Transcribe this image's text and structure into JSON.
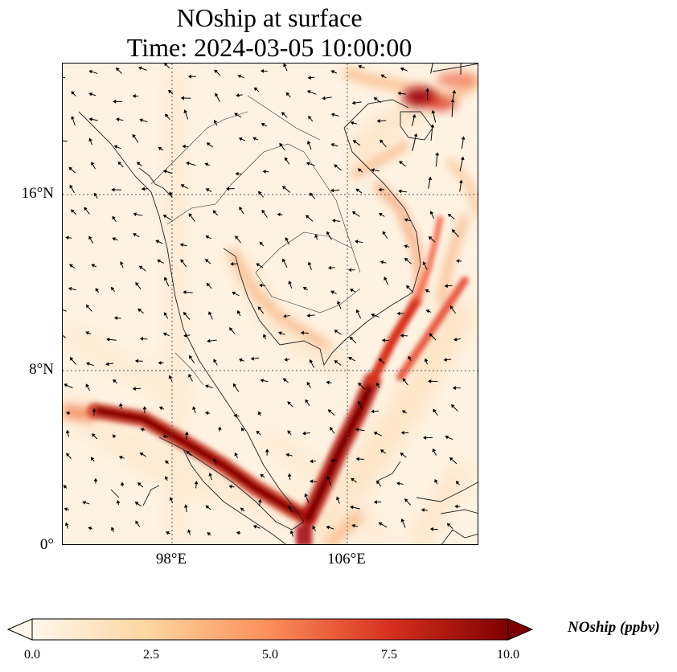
{
  "title": {
    "line1": "NOship at surface",
    "line2": "Time: 2024-03-05 10:00:00"
  },
  "map": {
    "variable": "NOship",
    "colormap": "OrRd",
    "extent": {
      "lon_min": 93,
      "lon_max": 112,
      "lat_min": 0,
      "lat_max": 22
    },
    "gridlines": {
      "style": "dotted",
      "lons": [
        98,
        106
      ],
      "lats": [
        0,
        8,
        16
      ]
    },
    "lat_labels": [
      "16°N",
      "8°N",
      "0°"
    ],
    "lon_labels": [
      "98°E",
      "106°E"
    ],
    "vector_field": "wind",
    "high_concentration_features": [
      "Strait of Malacca shipping lane",
      "Singapore Strait",
      "South China Sea lane to the northeast",
      "Vietnam coast lane",
      "Gulf of Tonkin / Hainan"
    ]
  },
  "colorbar": {
    "label": "NOship (ppbv)",
    "min": 0.0,
    "max": 10.0,
    "extend": "both",
    "ticks": [
      "0.0",
      "2.5",
      "5.0",
      "7.5",
      "10.0"
    ],
    "colors": [
      "#fff7ec",
      "#fdd49e",
      "#fc8d59",
      "#d7301f",
      "#7f0000"
    ]
  }
}
